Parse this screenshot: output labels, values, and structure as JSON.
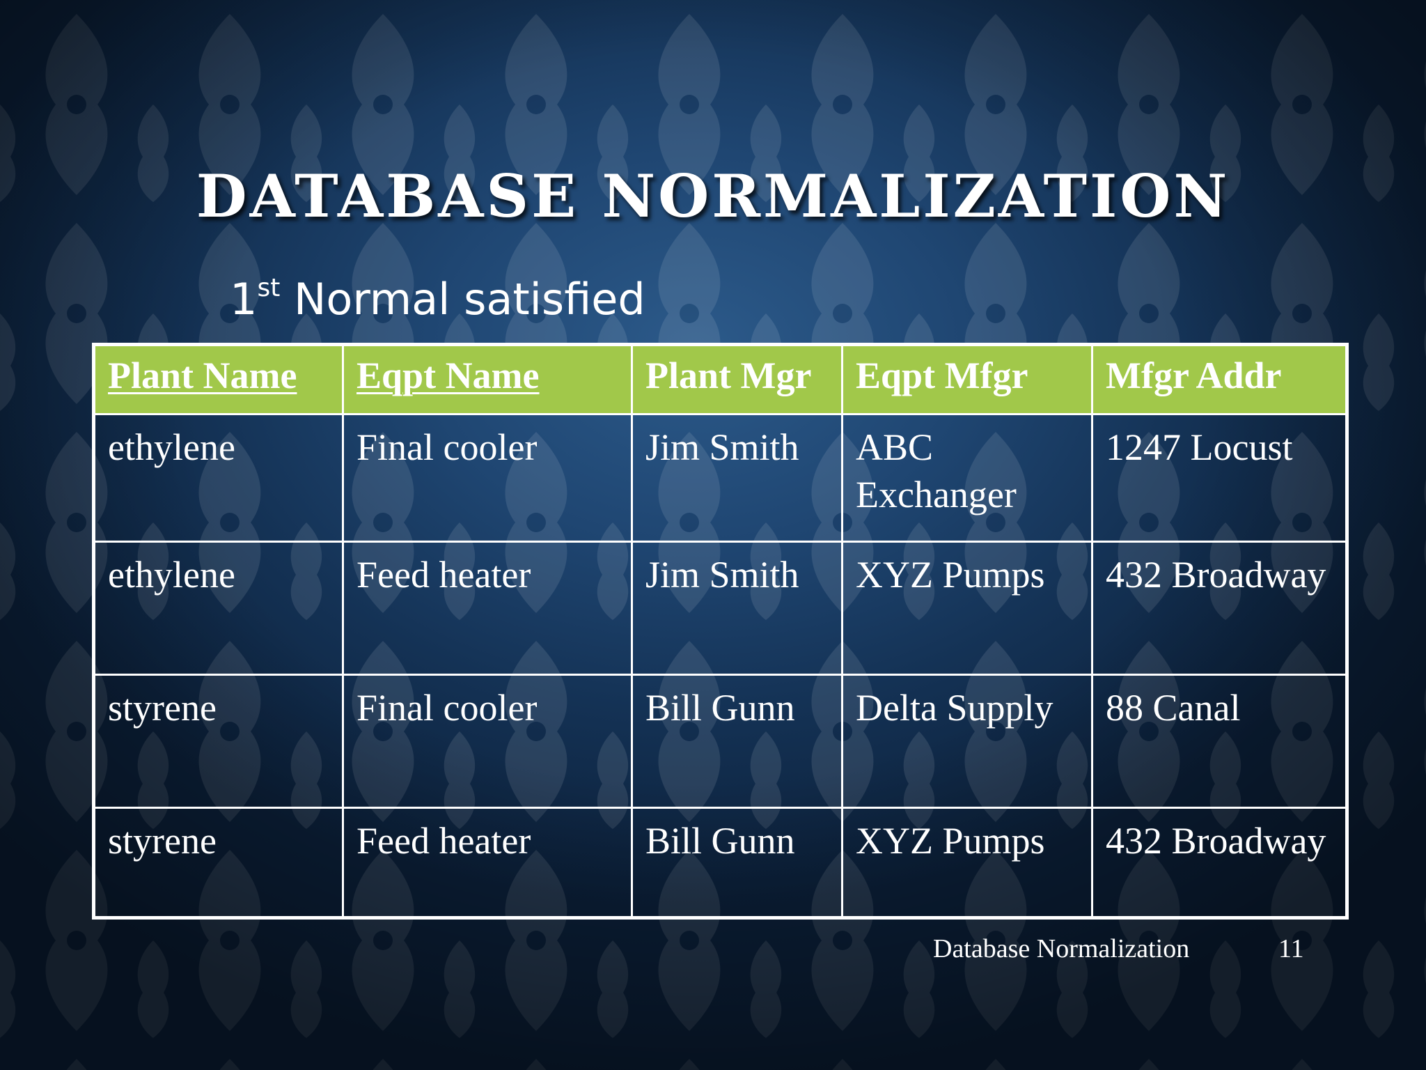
{
  "slide": {
    "title": "DATABASE NORMALIZATION",
    "subtitle_number": "1",
    "subtitle_superscript": "st",
    "subtitle_text": " Normal satisfied",
    "footer": "Database Normalization",
    "page_number": "11"
  },
  "table": {
    "headers": [
      "Plant Name",
      "Eqpt Name",
      "Plant Mgr",
      "Eqpt Mfgr",
      "Mfgr Addr"
    ],
    "rows": [
      [
        "ethylene",
        "Final cooler",
        "Jim Smith",
        "ABC Exchanger",
        "1247 Locust"
      ],
      [
        "ethylene",
        "Feed heater",
        "Jim Smith",
        "XYZ Pumps",
        "432 Broadway"
      ],
      [
        "styrene",
        "Final cooler",
        "Bill Gunn",
        "Delta Supply",
        "88 Canal"
      ],
      [
        "styrene",
        "Feed heater",
        "Bill Gunn",
        "XYZ Pumps",
        "432 Broadway"
      ]
    ]
  },
  "colors": {
    "header_background": "#a1c84a",
    "background": "#1f4672",
    "text": "#ffffff"
  }
}
